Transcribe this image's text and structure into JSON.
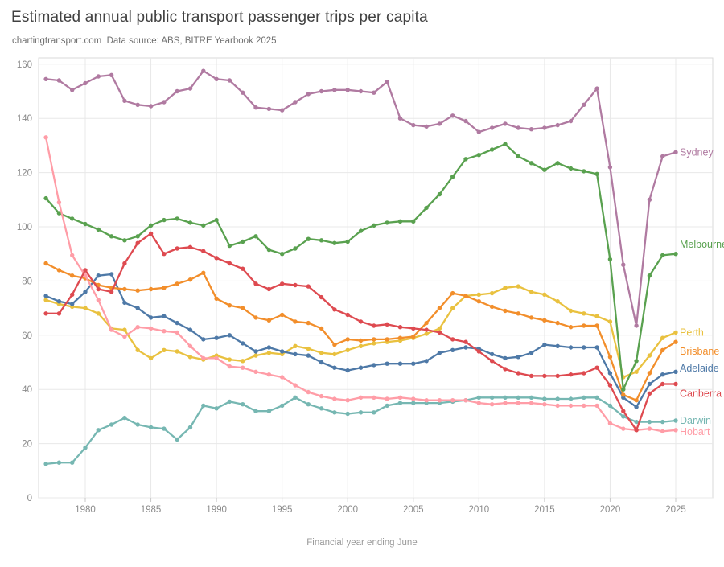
{
  "page": {
    "title": "Estimated annual public transport passenger trips per capita",
    "subtitle": "chartingtransport.com  Data source: ABS, BITRE Yearbook 2025"
  },
  "chart_data": {
    "type": "line",
    "title": "Estimated annual public transport passenger trips per capita",
    "subtitle": "chartingtransport.com  Data source: ABS, BITRE Yearbook 2025",
    "xlabel": "Financial year ending June",
    "ylabel": "",
    "xlim": [
      1977,
      2025
    ],
    "ylim": [
      0,
      160
    ],
    "x_ticks": [
      1980,
      1985,
      1990,
      1995,
      2000,
      2005,
      2010,
      2015,
      2020,
      2025
    ],
    "y_ticks": [
      0,
      20,
      40,
      60,
      80,
      100,
      120,
      140,
      160
    ],
    "grid": true,
    "legend_position": "right-edge-labels",
    "x_start_year": 1977,
    "series": [
      {
        "name": "Sydney",
        "color": "#b07aa1",
        "z": 8,
        "label_value": 127.5,
        "values": [
          154.5,
          154,
          150.5,
          153,
          155.5,
          156,
          146.5,
          145,
          144.5,
          146,
          150,
          151,
          157.5,
          154.5,
          154,
          149.5,
          144,
          143.5,
          143,
          146,
          149,
          150,
          150.5,
          150.5,
          150,
          149.5,
          153.5,
          140,
          137.5,
          137,
          138,
          141,
          139,
          135,
          136.5,
          138,
          136.5,
          136,
          136.5,
          137.5,
          139,
          145,
          151,
          122,
          86,
          63.5,
          110,
          126,
          127.5
        ]
      },
      {
        "name": "Melbourne",
        "color": "#59a14f",
        "z": 5,
        "label_value": 93.5,
        "values": [
          110.5,
          105,
          103,
          101,
          99,
          96.5,
          95,
          96.5,
          100.5,
          102.5,
          103,
          101.5,
          100.5,
          102.5,
          93,
          94.5,
          96.5,
          91.5,
          90,
          92,
          95.5,
          95,
          94,
          94.5,
          98.5,
          100.5,
          101.5,
          102,
          102,
          107,
          112,
          118.5,
          125,
          126.5,
          128.5,
          130.5,
          126,
          123.5,
          121,
          123.5,
          121.5,
          120.5,
          119.5,
          88,
          40,
          50.5,
          82,
          89.5,
          90
        ]
      },
      {
        "name": "Perth",
        "color": "#e9c13f",
        "z": 2,
        "label_value": 61,
        "values": [
          73,
          71.5,
          70.5,
          70,
          68,
          62.5,
          62,
          54.5,
          51.5,
          54.5,
          54,
          52,
          51,
          52.5,
          51,
          50.5,
          52.5,
          53.5,
          53,
          56,
          55,
          53.5,
          53,
          54.5,
          56,
          57,
          57.5,
          58,
          59,
          60.5,
          62.5,
          70,
          74.5,
          75,
          75.5,
          77.5,
          78,
          76,
          75,
          72.5,
          69,
          68,
          67,
          65,
          44.5,
          46.5,
          52.5,
          59,
          61
        ]
      },
      {
        "name": "Brisbane",
        "color": "#f28e2b",
        "z": 4,
        "label_value": 54,
        "values": [
          86.5,
          84,
          82,
          81,
          78.5,
          77.5,
          77,
          76.5,
          77,
          77.5,
          79,
          80.5,
          83,
          73.5,
          71,
          70,
          66.5,
          65.5,
          67.5,
          65,
          64.5,
          62.5,
          56.5,
          58.5,
          58,
          58.5,
          58.5,
          59,
          59.5,
          64.5,
          70,
          75.5,
          74.5,
          72.5,
          70.5,
          69,
          68,
          66.5,
          65.5,
          64.5,
          63,
          63.5,
          63.5,
          52,
          38,
          36,
          46,
          54.5,
          57.5
        ]
      },
      {
        "name": "Adelaide",
        "color": "#4e79a7",
        "z": 3,
        "label_value": 47.8,
        "values": [
          74.5,
          72.5,
          71.5,
          76,
          82,
          82.5,
          72,
          70,
          66.5,
          67,
          64.5,
          62,
          58.5,
          59,
          60,
          57,
          54,
          55.5,
          54,
          53,
          52.5,
          50,
          48,
          47,
          48,
          49,
          49.5,
          49.5,
          49.5,
          50.5,
          53.5,
          54.5,
          55.5,
          55,
          53,
          51.5,
          52,
          53.5,
          56.5,
          56,
          55.5,
          55.5,
          55.5,
          46,
          37,
          33.5,
          42,
          45.5,
          46.5
        ]
      },
      {
        "name": "Canberra",
        "color": "#de4a50",
        "z": 7,
        "label_value": 38.5,
        "values": [
          68,
          68,
          75,
          84,
          77,
          76,
          86.5,
          94,
          97.5,
          90,
          92,
          92.5,
          91,
          88.5,
          86.5,
          84.5,
          79,
          77,
          79,
          78.5,
          78,
          74,
          69.5,
          67.5,
          65,
          63.5,
          64,
          63,
          62.5,
          62,
          61,
          58.5,
          57.5,
          54,
          50.5,
          47.5,
          46,
          45,
          45,
          45,
          45.5,
          46,
          48,
          41.5,
          32,
          25,
          38.5,
          42,
          42
        ]
      },
      {
        "name": "Darwin",
        "color": "#76b7b2",
        "z": 1,
        "label_value": 28.5,
        "values": [
          12.5,
          13,
          13,
          18.5,
          25,
          27,
          29.5,
          27,
          26,
          25.5,
          21.5,
          26,
          34,
          33,
          35.5,
          34.5,
          32,
          32,
          34,
          37,
          34.5,
          33,
          31.5,
          31,
          31.5,
          31.5,
          34,
          35,
          35,
          35,
          35,
          35.5,
          36,
          37,
          37,
          37,
          37,
          37,
          36.5,
          36.5,
          36.5,
          37,
          37,
          34,
          30,
          28,
          28,
          28,
          28.5
        ]
      },
      {
        "name": "Hobart",
        "color": "#ff9da7",
        "z": 6,
        "label_value": 24.3,
        "values": [
          133,
          109,
          89.5,
          82,
          73,
          62,
          59.5,
          63,
          62.5,
          61.5,
          61,
          56,
          51.5,
          51.5,
          48.5,
          48,
          46.5,
          45.5,
          44.5,
          41.5,
          39,
          37.5,
          36.5,
          36,
          37,
          37,
          36.5,
          37,
          36.5,
          36,
          36,
          36,
          36,
          35,
          34.5,
          35,
          35,
          35,
          34.5,
          34,
          34,
          34,
          34,
          27.5,
          25.5,
          25,
          25.5,
          24.5,
          25
        ]
      }
    ]
  }
}
